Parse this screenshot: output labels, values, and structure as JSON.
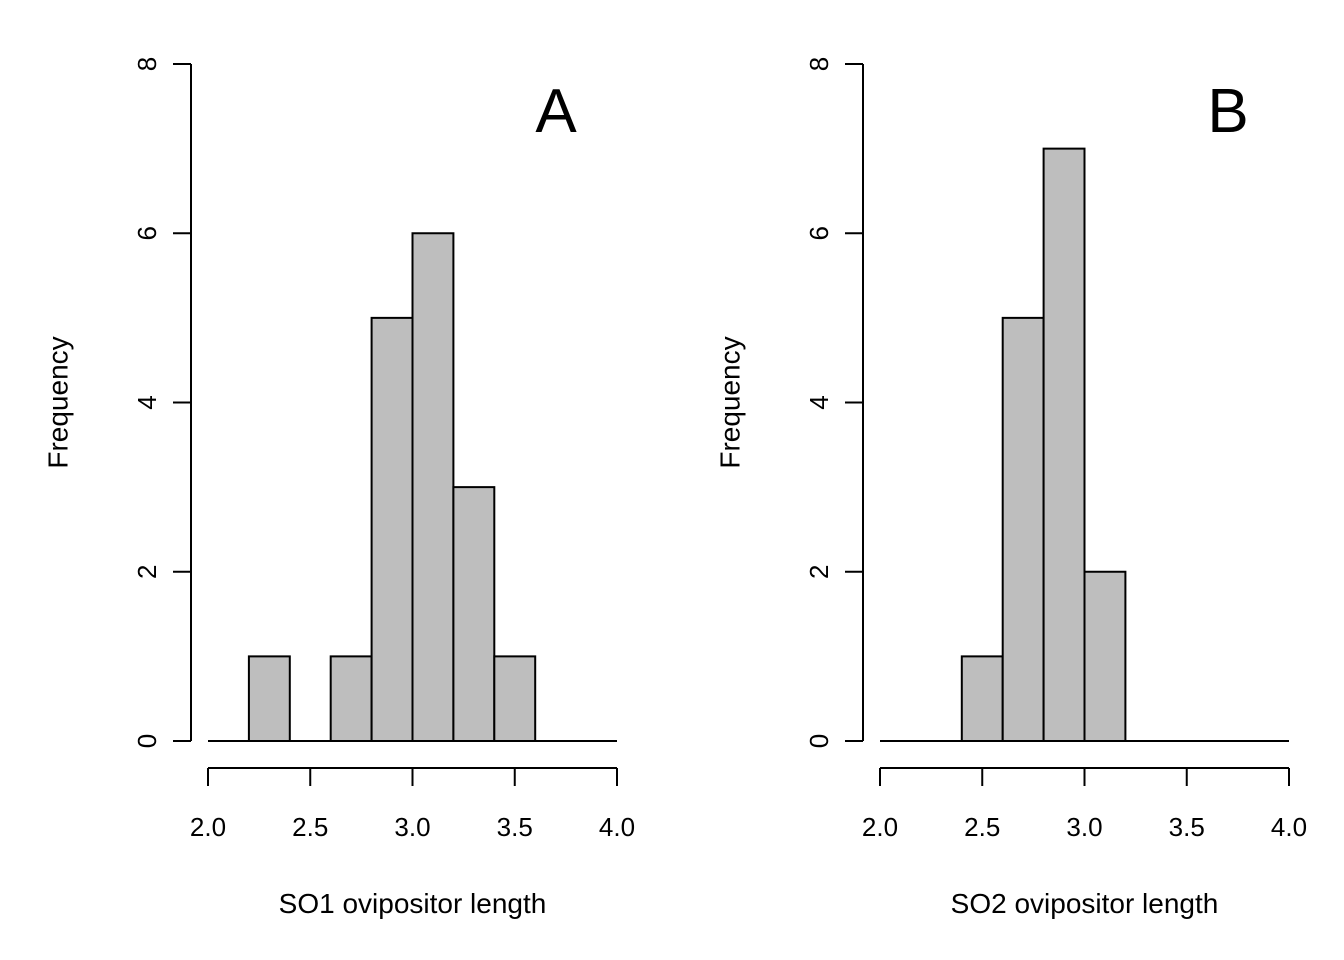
{
  "chart_data": [
    {
      "type": "bar",
      "panel_label": "A",
      "xlabel": "SO1 ovipositor length",
      "ylabel": "Frequency",
      "bin_edges": [
        2.0,
        2.2,
        2.4,
        2.6,
        2.8,
        3.0,
        3.2,
        3.4,
        3.6,
        3.8,
        4.0
      ],
      "values": [
        0,
        1,
        0,
        1,
        5,
        6,
        3,
        1,
        0,
        0
      ],
      "xlim": [
        2.0,
        4.0
      ],
      "ylim": [
        0,
        8
      ],
      "xticks": [
        "2.0",
        "2.5",
        "3.0",
        "3.5",
        "4.0"
      ],
      "yticks": [
        "0",
        "2",
        "4",
        "6",
        "8"
      ],
      "bar_color": "#bebebe"
    },
    {
      "type": "bar",
      "panel_label": "B",
      "xlabel": "SO2 ovipositor length",
      "ylabel": "Frequency",
      "bin_edges": [
        2.0,
        2.2,
        2.4,
        2.6,
        2.8,
        3.0,
        3.2,
        3.4,
        3.6,
        3.8,
        4.0
      ],
      "values": [
        0,
        0,
        1,
        5,
        7,
        2,
        0,
        0,
        0,
        0
      ],
      "xlim": [
        2.0,
        4.0
      ],
      "ylim": [
        0,
        8
      ],
      "xticks": [
        "2.0",
        "2.5",
        "3.0",
        "3.5",
        "4.0"
      ],
      "yticks": [
        "0",
        "2",
        "4",
        "6",
        "8"
      ],
      "bar_color": "#bebebe"
    }
  ]
}
